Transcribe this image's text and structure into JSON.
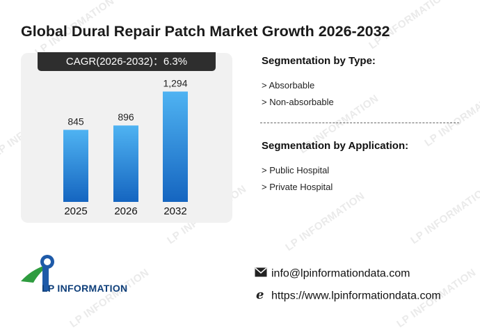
{
  "title": "Global Dural Repair Patch Market Growth 2026-2032",
  "cagr_label": "CAGR(2026-2032)：6.3%",
  "chart_data": {
    "type": "bar",
    "categories": [
      "2025",
      "2026",
      "2032"
    ],
    "values": [
      845,
      896,
      1294
    ],
    "data_labels": [
      "845",
      "896",
      "1,294"
    ],
    "title": "",
    "xlabel": "",
    "ylabel": "",
    "ylim": [
      0,
      1600
    ],
    "grid": false,
    "colors": {
      "bar_top": "#4fb3f2",
      "bar_bottom": "#1565c0"
    }
  },
  "segmentation_type": {
    "heading": "Segmentation by Type:",
    "items": [
      "> Absorbable",
      "> Non-absorbable"
    ]
  },
  "segmentation_application": {
    "heading": "Segmentation by Application:",
    "items": [
      "> Public Hospital",
      "> Private Hospital"
    ]
  },
  "logo": {
    "text": "LP INFORMATION"
  },
  "watermark_text": "LP INFORMATION",
  "contact": {
    "email": "info@lpinformationdata.com",
    "website": "https://www.lpinformationdata.com",
    "email_icon": "envelope-icon",
    "website_icon": "browser-e-icon"
  }
}
